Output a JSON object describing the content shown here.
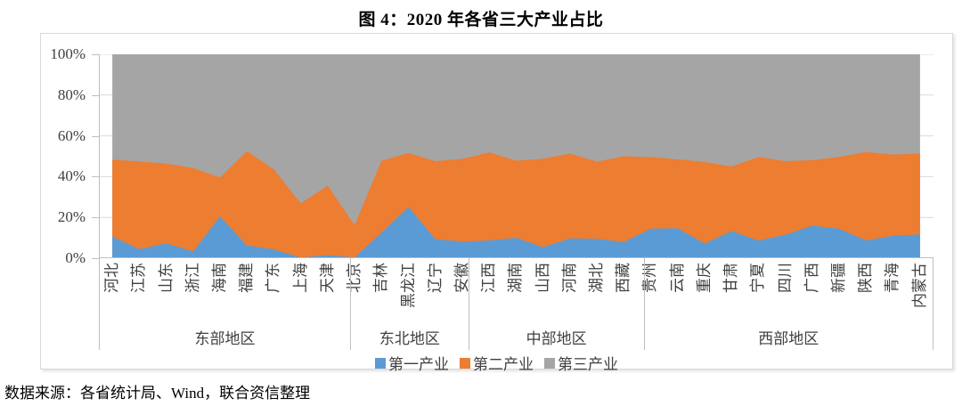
{
  "title": "图 4：2020 年各省三大产业占比",
  "source": "数据来源：各省统计局、Wind，联合资信整理",
  "colors": {
    "primary": "#5B9BD5",
    "secondary": "#ED7D31",
    "tertiary": "#A5A5A5",
    "gridline": "#d9d9d9",
    "axis": "#bfbfbf",
    "frame_border": "#d9d9d9",
    "label_text": "#404040"
  },
  "y_axis": {
    "ticks": [
      "100%",
      "80%",
      "60%",
      "40%",
      "20%",
      "0%"
    ]
  },
  "legend": [
    {
      "label": "第一产业",
      "color": "#5B9BD5"
    },
    {
      "label": "第二产业",
      "color": "#ED7D31"
    },
    {
      "label": "第三产业",
      "color": "#A5A5A5"
    }
  ],
  "regions": [
    {
      "name": "东部地区",
      "count": 10
    },
    {
      "name": "东北地区",
      "count": 3
    },
    {
      "name": "中部地区",
      "count": 6
    },
    {
      "name": "西部地区",
      "count": 12
    }
  ],
  "chart_data": {
    "type": "area",
    "stacked": true,
    "percent_stacked": true,
    "title": "图 4：2020 年各省三大产业占比",
    "xlabel": "",
    "ylabel": "",
    "ylim": [
      0,
      100
    ],
    "y_ticks_percent": [
      0,
      20,
      40,
      60,
      80,
      100
    ],
    "grid": true,
    "legend_position": "bottom",
    "categories": [
      "河北",
      "江苏",
      "山东",
      "浙江",
      "海南",
      "福建",
      "广东",
      "上海",
      "天津",
      "北京",
      "吉林",
      "黑龙江",
      "辽宁",
      "安徽",
      "江西",
      "湖南",
      "山西",
      "河南",
      "湖北",
      "西藏",
      "贵州",
      "云南",
      "重庆",
      "甘肃",
      "宁夏",
      "四川",
      "广西",
      "新疆",
      "陕西",
      "青海",
      "内蒙古"
    ],
    "category_groups": [
      {
        "name": "东部地区",
        "categories": [
          "河北",
          "江苏",
          "山东",
          "浙江",
          "海南",
          "福建",
          "广东",
          "上海",
          "天津",
          "北京"
        ]
      },
      {
        "name": "东北地区",
        "categories": [
          "吉林",
          "黑龙江",
          "辽宁"
        ]
      },
      {
        "name": "中部地区",
        "categories": [
          "安徽",
          "江西",
          "湖南",
          "山西",
          "河南",
          "湖北"
        ]
      },
      {
        "name": "西部地区",
        "categories": [
          "西藏",
          "贵州",
          "云南",
          "重庆",
          "甘肃",
          "宁夏",
          "四川",
          "广西",
          "新疆",
          "陕西",
          "青海",
          "内蒙古"
        ]
      }
    ],
    "series": [
      {
        "name": "第一产业",
        "color": "#5B9BD5",
        "values": [
          10.7,
          4.4,
          7.3,
          3.3,
          20.5,
          6.2,
          4.3,
          0.3,
          1.5,
          0.4,
          12.6,
          25.1,
          9.3,
          8.2,
          8.7,
          10.0,
          5.4,
          9.7,
          9.5,
          7.9,
          14.5,
          14.7,
          7.2,
          13.3,
          8.6,
          11.5,
          16.0,
          14.4,
          8.7,
          11.0,
          11.7
        ]
      },
      {
        "name": "第二产业",
        "color": "#ED7D31",
        "values": [
          37.6,
          43.1,
          39.1,
          40.9,
          19.1,
          46.3,
          39.2,
          26.6,
          34.1,
          15.8,
          35.2,
          26.5,
          38.3,
          40.5,
          43.2,
          37.8,
          43.4,
          41.6,
          37.9,
          42.1,
          35.1,
          33.8,
          40.0,
          31.7,
          41.0,
          36.1,
          32.1,
          35.3,
          43.4,
          39.8,
          39.6
        ]
      },
      {
        "name": "第三产业",
        "color": "#A5A5A5",
        "values": [
          51.7,
          52.5,
          53.6,
          55.8,
          60.4,
          47.5,
          56.5,
          73.1,
          64.4,
          83.8,
          52.2,
          48.4,
          52.4,
          51.3,
          48.1,
          52.2,
          51.2,
          48.7,
          52.6,
          50.0,
          50.4,
          51.5,
          52.8,
          55.0,
          50.4,
          52.4,
          51.9,
          50.3,
          47.9,
          49.2,
          48.7
        ]
      }
    ]
  }
}
